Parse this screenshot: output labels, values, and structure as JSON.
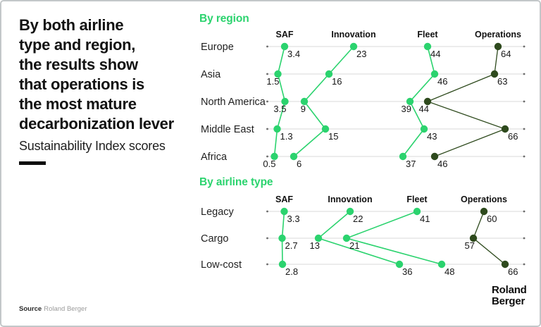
{
  "left_panel": {
    "title_lines": [
      "By both airline",
      "type and region,",
      "the results show",
      "that operations is",
      "the most mature",
      "decarbonization lever"
    ],
    "subtitle": "Sustainability Index scores"
  },
  "footer": {
    "source_label": "Source",
    "source_value": "Roland Berger"
  },
  "logo": {
    "line1": "Roland",
    "line2": "Berger"
  },
  "colors": {
    "green": "#2bd36e",
    "dark_green": "#2e4a1d",
    "text": "#141414",
    "grid": "#d8d8d8",
    "axis_dot": "#6b6b6b",
    "muted": "#9b9b9b"
  },
  "chart_data": [
    {
      "type": "scatter",
      "title": "By region",
      "metrics": [
        "SAF",
        "Innovation",
        "Fleet",
        "Operations"
      ],
      "categories": [
        "Europe",
        "Asia",
        "North America",
        "Middle East",
        "Africa"
      ],
      "x_range": [
        0,
        72
      ],
      "grid": "horizontal-row-lines",
      "legend_position": "column-headers",
      "series": [
        {
          "name": "SAF",
          "color": "green",
          "values": [
            3.4,
            1.5,
            3.5,
            1.3,
            0.5
          ],
          "label_side": [
            "right",
            "left",
            "left",
            "right",
            "left"
          ]
        },
        {
          "name": "Innovation",
          "color": "green",
          "values": [
            23,
            16,
            9,
            15,
            6
          ],
          "label_side": [
            "right",
            "right",
            "left",
            "right",
            "right"
          ]
        },
        {
          "name": "Fleet",
          "color": "green",
          "values": [
            44,
            46,
            39,
            43,
            37
          ],
          "label_side": [
            "right",
            "right",
            "left",
            "right",
            "right"
          ]
        },
        {
          "name": "Operations",
          "color": "dark_green",
          "values": [
            64,
            63,
            44,
            66,
            46
          ],
          "label_side": [
            "right",
            "right",
            "left",
            "right",
            "right"
          ]
        }
      ]
    },
    {
      "type": "scatter",
      "title": "By airline type",
      "metrics": [
        "SAF",
        "Innovation",
        "Fleet",
        "Operations"
      ],
      "categories": [
        "Legacy",
        "Cargo",
        "Low-cost"
      ],
      "x_range": [
        0,
        72
      ],
      "grid": "horizontal-row-lines",
      "legend_position": "column-headers",
      "series": [
        {
          "name": "SAF",
          "color": "green",
          "values": [
            3.3,
            2.7,
            2.8
          ],
          "label_side": [
            "right",
            "right",
            "right"
          ]
        },
        {
          "name": "Innovation",
          "color": "green",
          "values": [
            22,
            13,
            36
          ],
          "label_side": [
            "right",
            "left",
            "right"
          ]
        },
        {
          "name": "Fleet",
          "color": "green",
          "values": [
            41,
            21,
            48
          ],
          "label_side": [
            "right",
            "right",
            "right"
          ]
        },
        {
          "name": "Operations",
          "color": "dark_green",
          "values": [
            60,
            57,
            66
          ],
          "label_side": [
            "right",
            "left",
            "right"
          ]
        }
      ]
    }
  ]
}
